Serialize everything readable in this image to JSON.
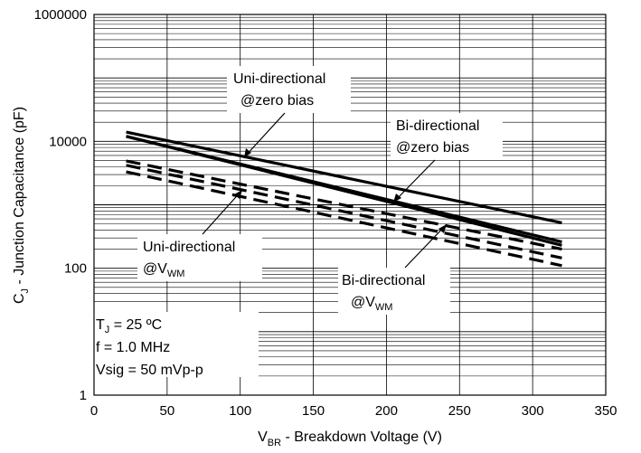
{
  "chart_data": {
    "type": "line",
    "y_scale": "log",
    "x_ticks": [
      0,
      50,
      100,
      150,
      200,
      250,
      300,
      350
    ],
    "y_ticks": [
      {
        "value": 1,
        "label": "1"
      },
      {
        "value": 100,
        "label": "100"
      },
      {
        "value": 10000,
        "label": "10000"
      },
      {
        "value": 1000000,
        "label": "1000000"
      }
    ],
    "xlim": [
      0,
      350
    ],
    "ylim": [
      1,
      1000000
    ],
    "grid": true,
    "x_axis_title": {
      "main": "V",
      "sub": "BR",
      "rest": " - Breakdown Voltage (V)"
    },
    "y_axis_title": {
      "main": "C",
      "sub": "J",
      "rest": " - Junction Capacitance (pF)"
    },
    "series": [
      {
        "style": "solid",
        "x": [
          22,
          320
        ],
        "y": [
          14000,
          520
        ]
      },
      {
        "style": "solid",
        "x": [
          22,
          320
        ],
        "y": [
          12000,
          230
        ]
      },
      {
        "style": "solid",
        "x": [
          22,
          320
        ],
        "y": [
          12000,
          260
        ]
      },
      {
        "style": "dashed",
        "x": [
          22,
          320
        ],
        "y": [
          4900,
          200
        ]
      },
      {
        "style": "dashed",
        "x": [
          22,
          320
        ],
        "y": [
          4200,
          145
        ]
      },
      {
        "style": "dashed",
        "x": [
          22,
          320
        ],
        "y": [
          3300,
          110
        ]
      }
    ],
    "annotations": {
      "uni_zero": [
        "Uni-directional",
        "@zero bias"
      ],
      "bi_zero": [
        "Bi-directional",
        "@zero bias"
      ],
      "uni_vwm": {
        "line1": "Uni-directional",
        "at": "@V",
        "sub": "WM"
      },
      "bi_vwm": {
        "line1": "Bi-directional",
        "at": "@V",
        "sub": "WM"
      },
      "conditions": {
        "tj": {
          "main": "T",
          "sub": "J",
          "rest": " = 25 ºC"
        },
        "freq": "f = 1.0 MHz",
        "vsig": "Vsig = 50 mVp-p"
      }
    }
  }
}
